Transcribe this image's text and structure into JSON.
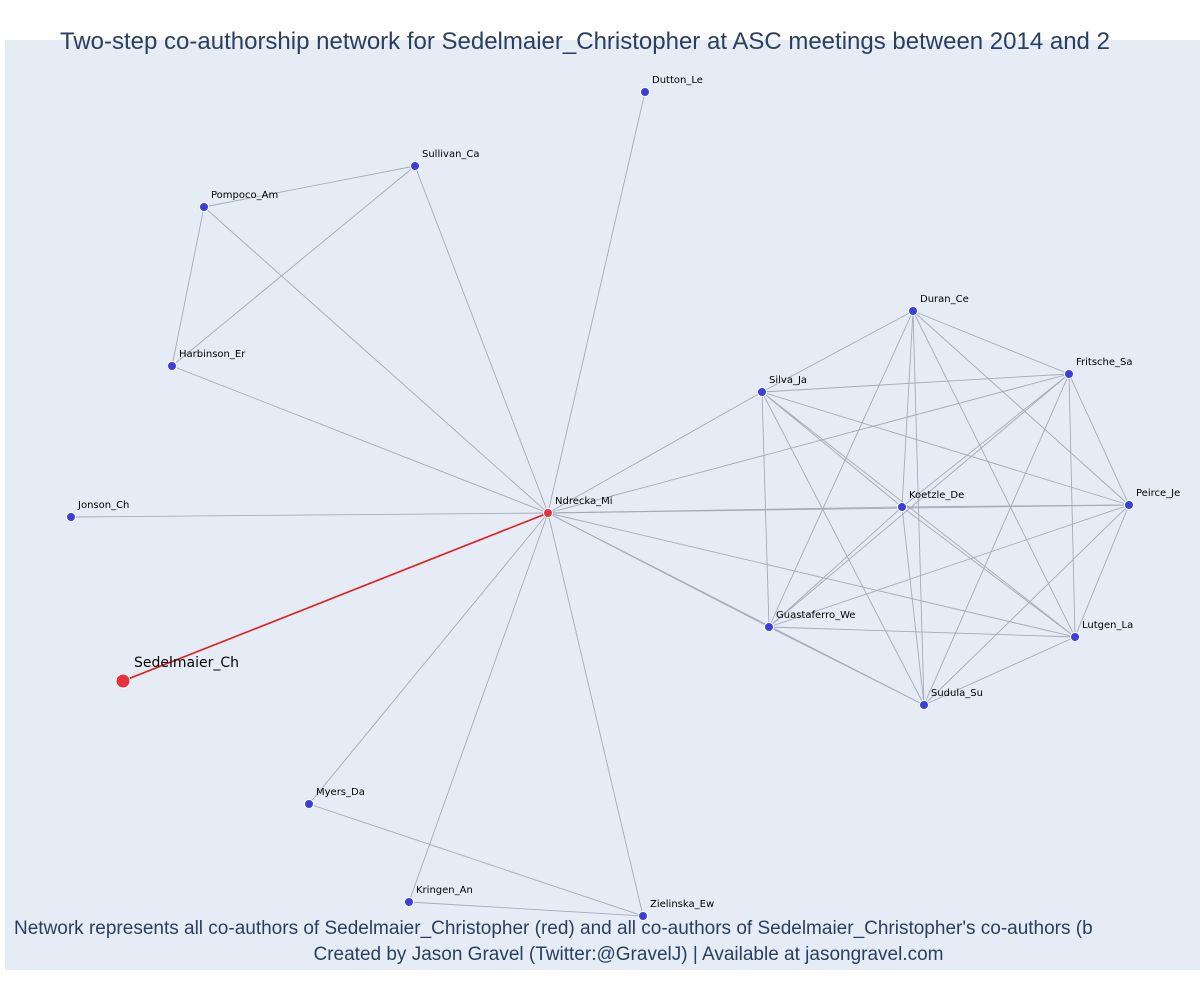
{
  "title": "Two-step co-authorship network for Sedelmaier_Christopher at ASC meetings between 2014 and 2",
  "caption_line1": "Network represents all co-authors of Sedelmaier_Christopher (red) and all co-authors of Sedelmaier_Christopher's co-authors (b",
  "caption_line2": "Created by Jason Gravel (Twitter:@GravelJ) | Available at jasongravel.com",
  "colors": {
    "background": "#e5ecf6",
    "node": "#3d3ddb",
    "focal": "#e8323c",
    "edge": "#a6a9b8",
    "focal_edge": "#e41a1c"
  },
  "focal_node": "Sedelmaier_Ch",
  "nodes": [
    {
      "id": "Sedelmaier_Ch",
      "label": "Sedelmaier_Ch",
      "role": "focal"
    },
    {
      "id": "Ndrecka_Mi",
      "label": "Ndrecka_Mi",
      "role": "coauthor"
    },
    {
      "id": "Dutton_Le",
      "label": "Dutton_Le",
      "role": "second"
    },
    {
      "id": "Sullivan_Ca",
      "label": "Sullivan_Ca",
      "role": "second"
    },
    {
      "id": "Pompoco_Am",
      "label": "Pompoco_Am",
      "role": "second"
    },
    {
      "id": "Harbinson_Er",
      "label": "Harbinson_Er",
      "role": "second"
    },
    {
      "id": "Jonson_Ch",
      "label": "Jonson_Ch",
      "role": "second"
    },
    {
      "id": "Duran_Ce",
      "label": "Duran_Ce",
      "role": "second"
    },
    {
      "id": "Fritsche_Sa",
      "label": "Fritsche_Sa",
      "role": "second"
    },
    {
      "id": "Silva_Ja",
      "label": "Silva_Ja",
      "role": "second"
    },
    {
      "id": "Koetzle_De",
      "label": "Koetzle_De",
      "role": "second"
    },
    {
      "id": "Peirce_Je",
      "label": "Peirce_Je",
      "role": "second"
    },
    {
      "id": "Guastaferro_We",
      "label": "Guastaferro_We",
      "role": "second"
    },
    {
      "id": "Lutgen_La",
      "label": "Lutgen_La",
      "role": "second"
    },
    {
      "id": "Sudula_Su",
      "label": "Sudula_Su",
      "role": "second"
    },
    {
      "id": "Myers_Da",
      "label": "Myers_Da",
      "role": "second"
    },
    {
      "id": "Kringen_An",
      "label": "Kringen_An",
      "role": "second"
    },
    {
      "id": "Zielinska_Ew",
      "label": "Zielinska_Ew",
      "role": "second"
    }
  ],
  "edges": [
    [
      "Sedelmaier_Ch",
      "Ndrecka_Mi"
    ],
    [
      "Ndrecka_Mi",
      "Dutton_Le"
    ],
    [
      "Ndrecka_Mi",
      "Sullivan_Ca"
    ],
    [
      "Ndrecka_Mi",
      "Pompoco_Am"
    ],
    [
      "Ndrecka_Mi",
      "Harbinson_Er"
    ],
    [
      "Ndrecka_Mi",
      "Jonson_Ch"
    ],
    [
      "Ndrecka_Mi",
      "Myers_Da"
    ],
    [
      "Ndrecka_Mi",
      "Kringen_An"
    ],
    [
      "Ndrecka_Mi",
      "Zielinska_Ew"
    ],
    [
      "Ndrecka_Mi",
      "Silva_Ja"
    ],
    [
      "Ndrecka_Mi",
      "Fritsche_Sa"
    ],
    [
      "Ndrecka_Mi",
      "Koetzle_De"
    ],
    [
      "Ndrecka_Mi",
      "Peirce_Je"
    ],
    [
      "Ndrecka_Mi",
      "Guastaferro_We"
    ],
    [
      "Ndrecka_Mi",
      "Lutgen_La"
    ],
    [
      "Ndrecka_Mi",
      "Sudula_Su"
    ],
    [
      "Sullivan_Ca",
      "Pompoco_Am"
    ],
    [
      "Sullivan_Ca",
      "Harbinson_Er"
    ],
    [
      "Pompoco_Am",
      "Harbinson_Er"
    ],
    [
      "Myers_Da",
      "Zielinska_Ew"
    ],
    [
      "Kringen_An",
      "Zielinska_Ew"
    ],
    [
      "Duran_Ce",
      "Silva_Ja"
    ],
    [
      "Duran_Ce",
      "Koetzle_De"
    ],
    [
      "Duran_Ce",
      "Fritsche_Sa"
    ],
    [
      "Duran_Ce",
      "Peirce_Je"
    ],
    [
      "Duran_Ce",
      "Lutgen_La"
    ],
    [
      "Duran_Ce",
      "Sudula_Su"
    ],
    [
      "Duran_Ce",
      "Guastaferro_We"
    ],
    [
      "Silva_Ja",
      "Fritsche_Sa"
    ],
    [
      "Silva_Ja",
      "Koetzle_De"
    ],
    [
      "Silva_Ja",
      "Peirce_Je"
    ],
    [
      "Silva_Ja",
      "Guastaferro_We"
    ],
    [
      "Silva_Ja",
      "Lutgen_La"
    ],
    [
      "Silva_Ja",
      "Sudula_Su"
    ],
    [
      "Fritsche_Sa",
      "Koetzle_De"
    ],
    [
      "Fritsche_Sa",
      "Peirce_Je"
    ],
    [
      "Fritsche_Sa",
      "Guastaferro_We"
    ],
    [
      "Fritsche_Sa",
      "Lutgen_La"
    ],
    [
      "Fritsche_Sa",
      "Sudula_Su"
    ],
    [
      "Koetzle_De",
      "Peirce_Je"
    ],
    [
      "Koetzle_De",
      "Guastaferro_We"
    ],
    [
      "Koetzle_De",
      "Lutgen_La"
    ],
    [
      "Koetzle_De",
      "Sudula_Su"
    ],
    [
      "Peirce_Je",
      "Guastaferro_We"
    ],
    [
      "Peirce_Je",
      "Lutgen_La"
    ],
    [
      "Peirce_Je",
      "Sudula_Su"
    ],
    [
      "Guastaferro_We",
      "Lutgen_La"
    ],
    [
      "Guastaferro_We",
      "Sudula_Su"
    ],
    [
      "Lutgen_La",
      "Sudula_Su"
    ]
  ]
}
